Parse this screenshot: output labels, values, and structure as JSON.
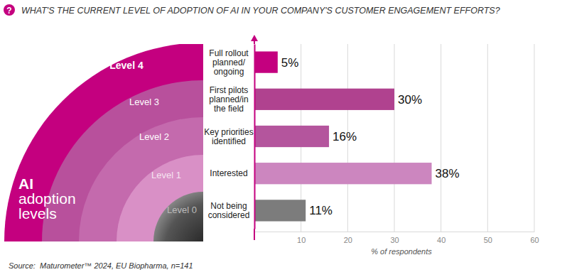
{
  "chart_data": {
    "type": "bar",
    "orientation": "horizontal",
    "title": "WHAT'S THE CURRENT LEVEL OF ADOPTION OF AI IN YOUR COMPANY'S CUSTOMER ENGAGEMENT EFFORTS?",
    "categories": [
      "Full rollout\nplanned/\nongoing",
      "First pilots\nplanned/in\nthe field",
      "Key priorities\nidentified",
      "Interested",
      "Not being\nconsidered"
    ],
    "values": [
      5,
      30,
      16,
      38,
      11
    ],
    "value_labels": [
      "5%",
      "30%",
      "16%",
      "38%",
      "11%"
    ],
    "colors": [
      "#c4007f",
      "#b0428f",
      "#b4559d",
      "#cc86bf",
      "#7c7c7c"
    ],
    "xlim": [
      0,
      60
    ],
    "xticks": [
      10,
      20,
      30,
      40,
      50,
      60
    ],
    "x_label": "% of respondents",
    "grid": true,
    "data_labels": true,
    "annotations": {
      "icon": "?",
      "levels": [
        "Level 4",
        "Level 3",
        "Level 2",
        "Level 1",
        "Level 0"
      ],
      "levels_title": [
        "AI",
        "adoption",
        "levels"
      ],
      "source": "Source:  Maturometer™ 2024, EU Biopharma, n=141"
    }
  }
}
